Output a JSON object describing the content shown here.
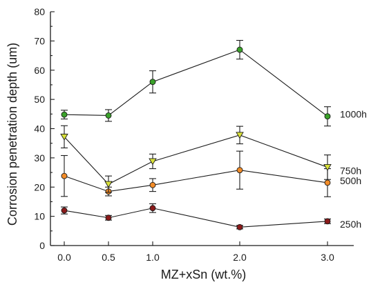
{
  "chart_data": {
    "type": "line",
    "xlabel": "MZ+xSn (wt.%)",
    "ylabel": "Corrosion penetration depth (um)",
    "x": [
      0.0,
      0.5,
      1.0,
      2.0,
      3.0
    ],
    "x_tick_labels": [
      "0.0",
      "0.5",
      "1.0",
      "2.0",
      "3.0"
    ],
    "x_scale": "categorical-like (nonlinear spacing: 0.0, 0.5, 1.0, 2.0, 3.0)",
    "ylim": [
      0,
      80
    ],
    "y_ticks": [
      0,
      10,
      20,
      30,
      40,
      50,
      60,
      70,
      80
    ],
    "y_tick_labels": [
      "0",
      "10",
      "20",
      "30",
      "40",
      "50",
      "60",
      "70",
      "80"
    ],
    "grid": false,
    "series": [
      {
        "name": "250h",
        "marker": "circle",
        "color": "#8b1a1a",
        "values": [
          12.0,
          9.5,
          12.8,
          6.3,
          8.3
        ],
        "errors": [
          1.2,
          0.8,
          1.5,
          0.6,
          0.8
        ]
      },
      {
        "name": "500h",
        "marker": "circle",
        "color": "#f28c28",
        "values": [
          23.8,
          18.5,
          20.7,
          25.8,
          21.5
        ],
        "errors": [
          7.0,
          1.5,
          2.2,
          6.5,
          4.8
        ]
      },
      {
        "name": "750h",
        "marker": "triangle-down",
        "color": "#d8e03a",
        "values": [
          37.2,
          21.0,
          28.8,
          37.8,
          26.8
        ],
        "errors": [
          3.8,
          2.8,
          2.5,
          3.0,
          4.2
        ]
      },
      {
        "name": "1000h",
        "marker": "circle",
        "color": "#3aa12a",
        "values": [
          44.8,
          44.5,
          56.0,
          67.0,
          44.2
        ],
        "errors": [
          1.5,
          2.0,
          3.8,
          3.2,
          3.3
        ]
      }
    ]
  }
}
